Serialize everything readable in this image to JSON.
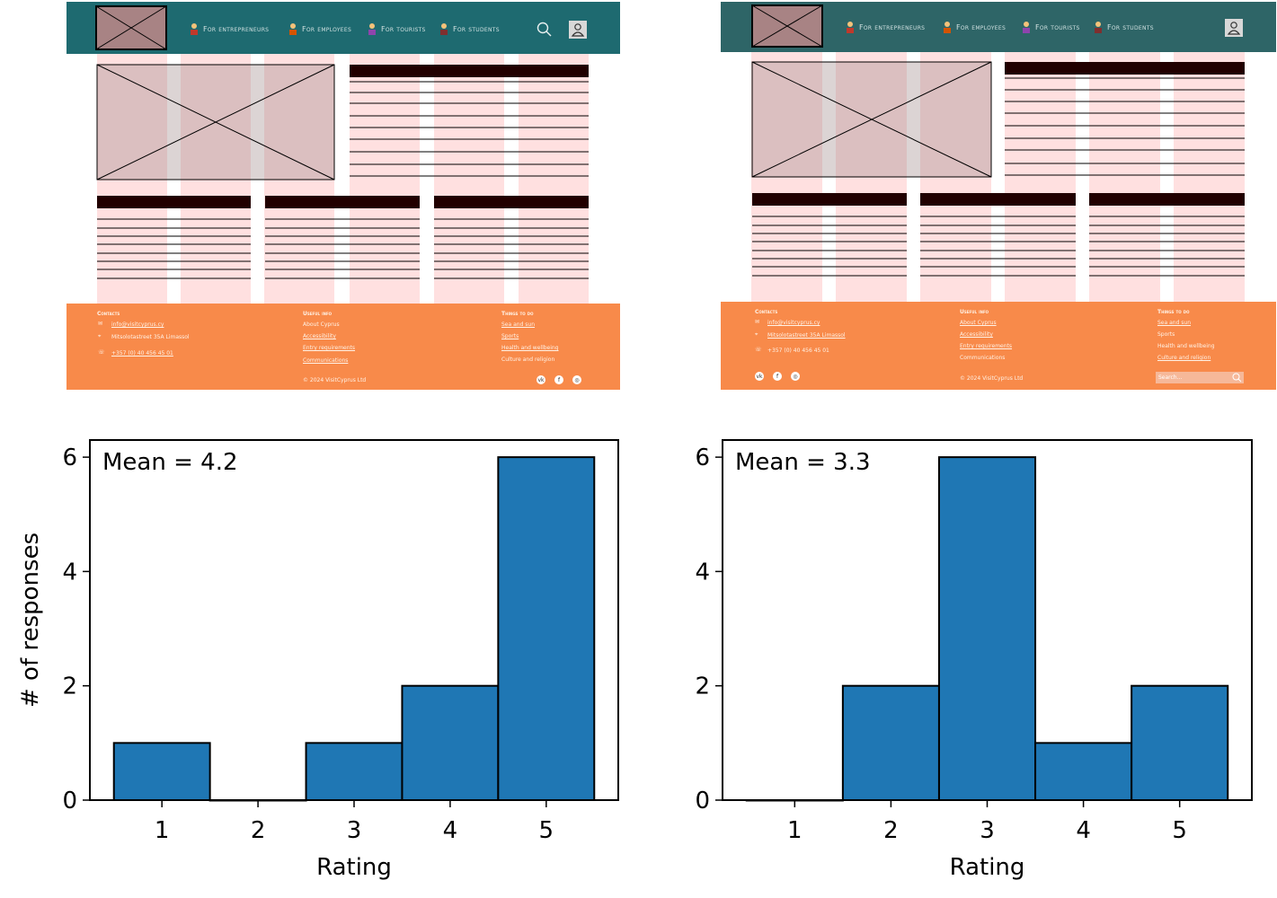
{
  "wireframes": [
    {
      "nav": [
        "For entrepreneurs",
        "For employees",
        "For tourists",
        "For students"
      ],
      "footer": {
        "contacts_heading": "Contacts",
        "contacts": [
          "info@visitcyprus.cy",
          "Mitsolotastreet 35A Limassol",
          "+357 (0) 40 456 45 01"
        ],
        "useful_heading": "Useful info",
        "useful": [
          "About Cyprus",
          "Accessibility",
          "Entry requirements",
          "Communications"
        ],
        "todo_heading": "Things to do",
        "todo": [
          "Sea and sun",
          "Sports",
          "Health and wellbeing",
          "Culture and religion"
        ],
        "copyright": "© 2024 VisitCyprus Ltd"
      }
    },
    {
      "nav": [
        "For entrepreneurs",
        "For employees",
        "For tourists",
        "For students"
      ],
      "footer": {
        "contacts_heading": "Contacts",
        "contacts": [
          "info@visitcyprus.cy",
          "Mitsolotastreet 35A Limassol",
          "+357 (0) 40 456 45 01"
        ],
        "useful_heading": "Useful info",
        "useful": [
          "About Cyprus",
          "Accessibility",
          "Entry requirements",
          "Communications"
        ],
        "todo_heading": "Things to do",
        "todo": [
          "Sea and sun",
          "Sports",
          "Health and wellbeing",
          "Culture and religion"
        ],
        "copyright": "© 2024 VisitCyprus Ltd",
        "search_placeholder": "Search..."
      }
    }
  ],
  "colors": {
    "header": "#1e6a70",
    "header_right": "#2e6567",
    "footer": "#f88a4a",
    "column_pink": "#ffe0e0",
    "image_fill": "#dbbfc0",
    "logo_fill": "#a88384",
    "dark_bar": "#210000",
    "bar": "#1f77b4"
  },
  "chart_data": [
    {
      "type": "bar",
      "categories": [
        1,
        2,
        3,
        4,
        5
      ],
      "values": [
        1,
        0,
        1,
        2,
        6
      ],
      "annotation": "Mean = 4.2",
      "xlabel": "Rating",
      "ylabel": "# of responses",
      "ylim": [
        0,
        6.3
      ],
      "yticks": [
        0,
        2,
        4,
        6
      ],
      "xticks": [
        1,
        2,
        3,
        4,
        5
      ]
    },
    {
      "type": "bar",
      "categories": [
        1,
        2,
        3,
        4,
        5
      ],
      "values": [
        0,
        2,
        6,
        1,
        2
      ],
      "annotation": "Mean = 3.3",
      "xlabel": "Rating",
      "ylabel": "",
      "ylim": [
        0,
        6.3
      ],
      "yticks": [
        0,
        2,
        4,
        6
      ],
      "xticks": [
        1,
        2,
        3,
        4,
        5
      ]
    }
  ]
}
